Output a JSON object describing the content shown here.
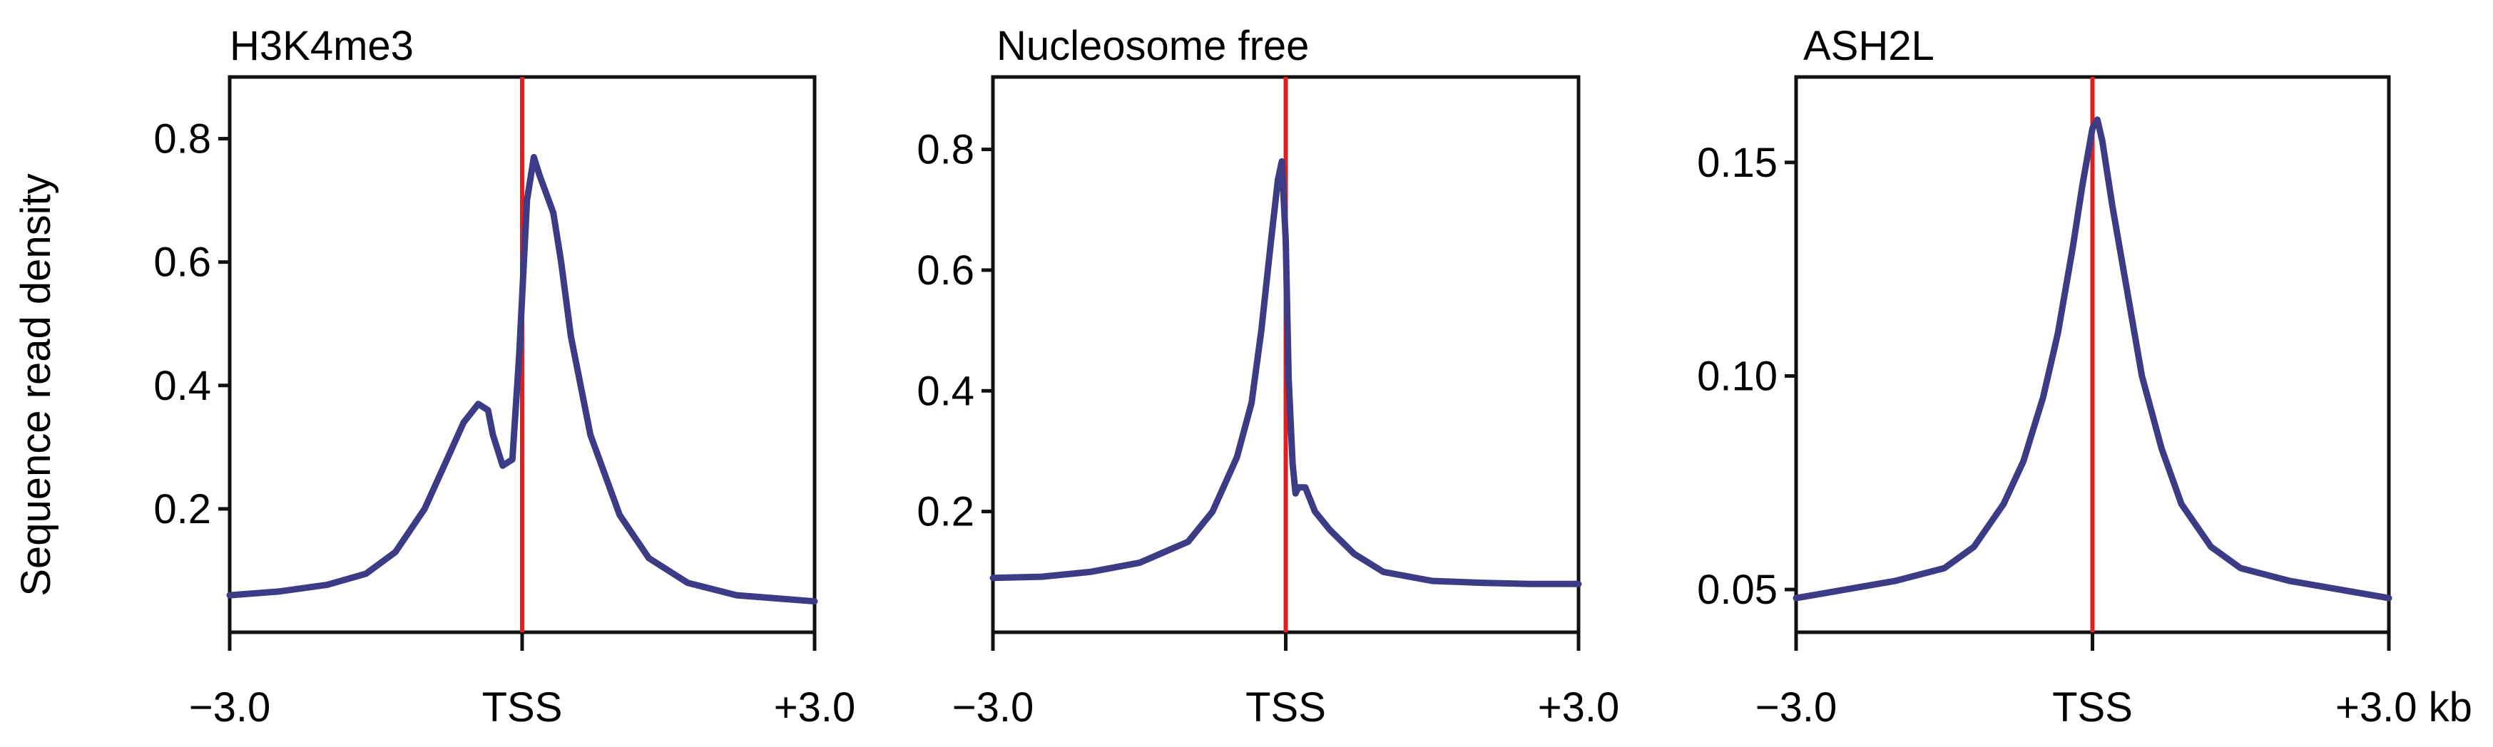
{
  "figure": {
    "ylabel": "Sequence read density",
    "x_unit": "kb"
  },
  "chart_data": [
    {
      "type": "line",
      "title": "H3K4me3",
      "xlabel": "",
      "ylabel": "Sequence read density",
      "xlim": [
        -3.0,
        3.0
      ],
      "ylim": [
        0.0,
        0.9
      ],
      "x_ticks": [
        -3.0,
        0,
        3.0
      ],
      "x_tick_labels": [
        "−3.0",
        "TSS",
        "+3.0"
      ],
      "y_ticks": [
        0.2,
        0.4,
        0.6,
        0.8
      ],
      "y_tick_labels": [
        "0.2",
        "0.4",
        "0.6",
        "0.8"
      ],
      "tss_line": {
        "x": 0,
        "color": "#e0201f"
      },
      "series": [
        {
          "name": "H3K4me3",
          "color": "#3b3b86",
          "x": [
            -3.0,
            -2.5,
            -2.0,
            -1.6,
            -1.3,
            -1.0,
            -0.8,
            -0.6,
            -0.45,
            -0.35,
            -0.3,
            -0.2,
            -0.1,
            -0.03,
            0.05,
            0.12,
            0.18,
            0.25,
            0.32,
            0.4,
            0.5,
            0.7,
            1.0,
            1.3,
            1.7,
            2.2,
            2.6,
            3.0
          ],
          "values": [
            0.06,
            0.066,
            0.077,
            0.095,
            0.13,
            0.2,
            0.27,
            0.34,
            0.37,
            0.36,
            0.32,
            0.27,
            0.28,
            0.45,
            0.7,
            0.77,
            0.74,
            0.71,
            0.68,
            0.6,
            0.48,
            0.32,
            0.19,
            0.12,
            0.08,
            0.06,
            0.055,
            0.05
          ]
        }
      ]
    },
    {
      "type": "line",
      "title": "Nucleosome free",
      "xlabel": "",
      "ylabel": "",
      "xlim": [
        -3.0,
        3.0
      ],
      "ylim": [
        0.0,
        0.92
      ],
      "x_ticks": [
        -3.0,
        0,
        3.0
      ],
      "x_tick_labels": [
        "−3.0",
        "TSS",
        "+3.0"
      ],
      "y_ticks": [
        0.2,
        0.4,
        0.6,
        0.8
      ],
      "y_tick_labels": [
        "0.2",
        "0.4",
        "0.6",
        "0.8"
      ],
      "tss_line": {
        "x": 0,
        "color": "#e0201f"
      },
      "series": [
        {
          "name": "Nucleosome free",
          "color": "#3b3b86",
          "x": [
            -3.0,
            -2.5,
            -2.0,
            -1.5,
            -1.0,
            -0.75,
            -0.5,
            -0.35,
            -0.25,
            -0.15,
            -0.08,
            -0.04,
            0.0,
            0.03,
            0.07,
            0.1,
            0.13,
            0.2,
            0.3,
            0.45,
            0.7,
            1.0,
            1.5,
            2.0,
            2.5,
            3.0
          ],
          "values": [
            0.09,
            0.092,
            0.1,
            0.115,
            0.15,
            0.2,
            0.29,
            0.38,
            0.5,
            0.65,
            0.75,
            0.78,
            0.65,
            0.42,
            0.28,
            0.23,
            0.24,
            0.24,
            0.2,
            0.17,
            0.13,
            0.1,
            0.085,
            0.082,
            0.08,
            0.08
          ]
        }
      ]
    },
    {
      "type": "line",
      "title": "ASH2L",
      "xlabel": "",
      "ylabel": "",
      "xlim": [
        -3.0,
        3.0
      ],
      "ylim": [
        0.04,
        0.17
      ],
      "x_ticks": [
        -3.0,
        0,
        3.0
      ],
      "x_tick_labels": [
        "−3.0",
        "TSS",
        "+3.0 kb"
      ],
      "y_ticks": [
        0.05,
        0.1,
        0.15
      ],
      "y_tick_labels": [
        "0.05",
        "0.10",
        "0.15"
      ],
      "tss_line": {
        "x": 0,
        "color": "#e0201f"
      },
      "series": [
        {
          "name": "ASH2L",
          "color": "#3b3b86",
          "x": [
            -3.0,
            -2.5,
            -2.0,
            -1.5,
            -1.2,
            -0.9,
            -0.7,
            -0.5,
            -0.35,
            -0.2,
            -0.1,
            0.0,
            0.05,
            0.1,
            0.2,
            0.35,
            0.5,
            0.7,
            0.9,
            1.2,
            1.5,
            2.0,
            2.5,
            3.0
          ],
          "values": [
            0.048,
            0.05,
            0.052,
            0.055,
            0.06,
            0.07,
            0.08,
            0.095,
            0.11,
            0.13,
            0.145,
            0.158,
            0.16,
            0.155,
            0.14,
            0.12,
            0.1,
            0.083,
            0.07,
            0.06,
            0.055,
            0.052,
            0.05,
            0.048
          ]
        }
      ]
    }
  ]
}
